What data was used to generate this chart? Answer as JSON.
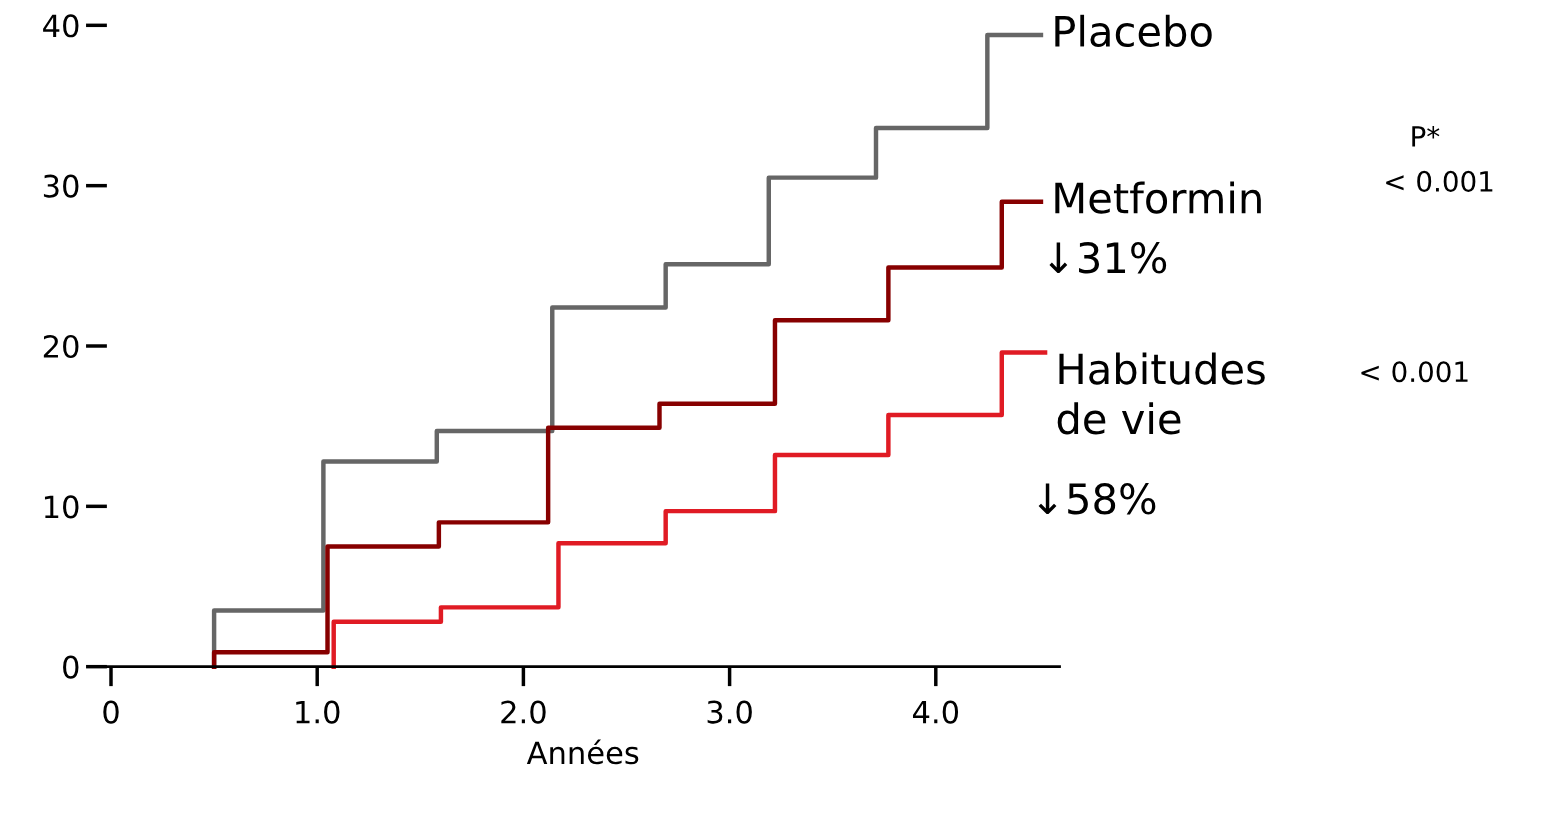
{
  "chart_data": {
    "type": "step",
    "xlabel": "Années",
    "xlim": [
      -0.02,
      4.6
    ],
    "ylim": [
      0,
      40
    ],
    "xticks": [
      0,
      {
        "value": 1,
        "label": "1.0"
      },
      {
        "value": 2,
        "label": "2.0"
      },
      {
        "value": 3,
        "label": "3.0"
      },
      {
        "value": 4,
        "label": "4.0"
      }
    ],
    "yticks": [
      0,
      10,
      20,
      30,
      40
    ],
    "grid": false,
    "legend": false,
    "marker": "none",
    "line_style": "solid",
    "series": [
      {
        "name": "Placebo",
        "color": "#666666",
        "x": [
          0.5,
          0.5,
          1.03,
          1.58,
          2.14,
          2.69,
          3.19,
          3.71,
          4.25,
          4.51
        ],
        "values": [
          0,
          3.5,
          12.8,
          14.7,
          22.4,
          25.1,
          30.5,
          33.6,
          39.4,
          39.4
        ]
      },
      {
        "name": "Metformin",
        "color": "#870000",
        "x": [
          0.5,
          0.5,
          1.05,
          1.59,
          2.12,
          2.66,
          3.22,
          3.77,
          4.32,
          4.51
        ],
        "values": [
          0,
          0.9,
          7.5,
          9.0,
          14.9,
          16.4,
          21.6,
          24.9,
          29.0,
          29.0
        ]
      },
      {
        "name": "Habitudes\nde vie",
        "color": "#e01b24",
        "x": [
          1.08,
          1.08,
          1.6,
          2.17,
          2.69,
          3.22,
          3.77,
          4.32,
          4.53
        ],
        "values": [
          0,
          2.8,
          3.7,
          7.7,
          9.7,
          13.2,
          15.7,
          19.6,
          19.6
        ]
      }
    ],
    "annotations": [
      "↓31%",
      "↓58%",
      "P*",
      "< 0.001",
      "< 0.001"
    ]
  }
}
